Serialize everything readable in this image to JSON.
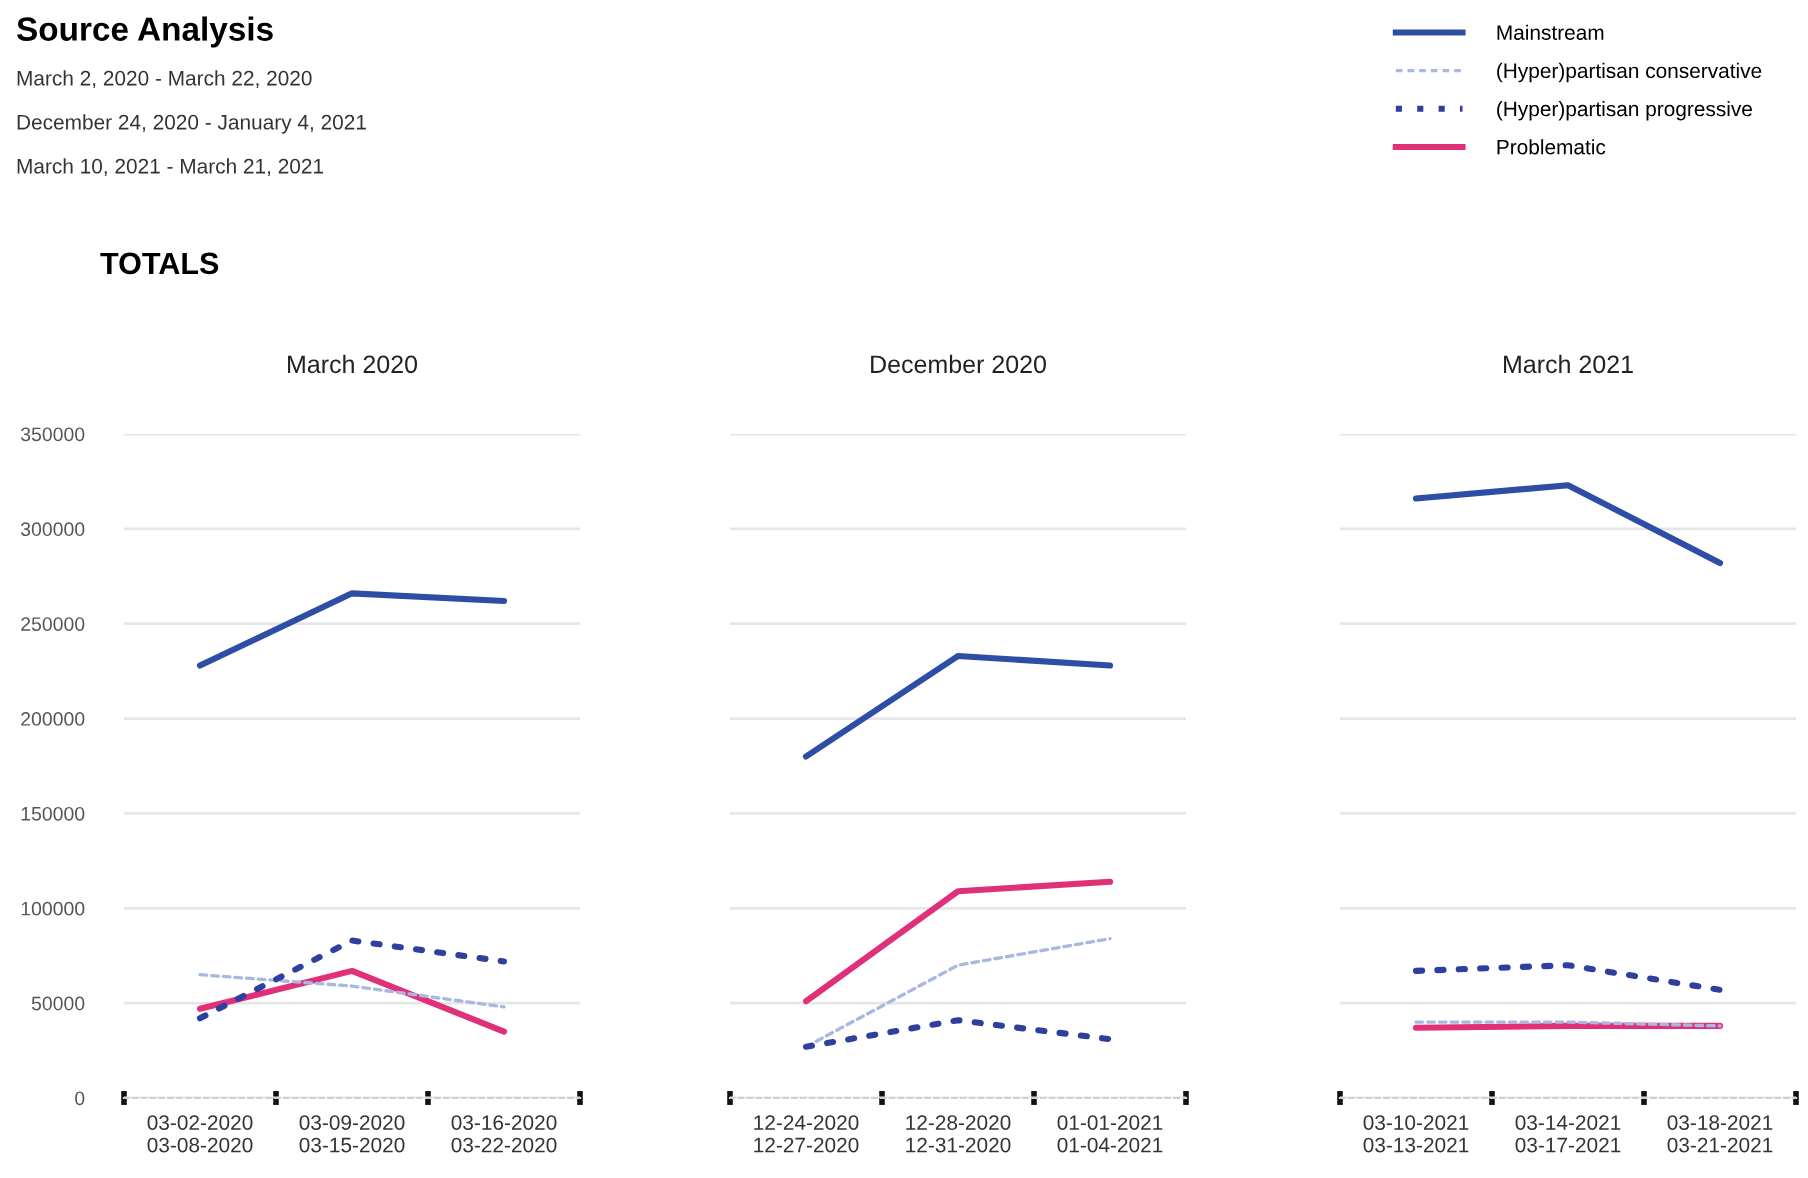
{
  "chart_data": [
    {
      "type": "line",
      "title": "March 2020",
      "legend": "top right",
      "annotations": [
        "Source Analysis",
        "March 2, 2020 - March 22, 2020",
        "December 24, 2020 - January 4, 2021",
        "March 10, 2021 - March 21, 2021",
        "TOTALS"
      ],
      "categories": [
        "03-02-2020\n03-08-2020",
        "03-09-2020\n03-15-2020",
        "03-16-2020\n03-22-2020"
      ],
      "ylim": [
        0,
        350000
      ],
      "yticks": [
        0,
        50000,
        100000,
        150000,
        200000,
        250000,
        300000,
        350000
      ],
      "grid": "y",
      "series": [
        {
          "name": "Mainstream",
          "color": "#2e4ea6",
          "line_style": "solid",
          "values": [
            228000,
            266000,
            262000
          ]
        },
        {
          "name": "(Hyper)partisan conservative",
          "color": "#a9b8e0",
          "line_style": "dashed",
          "values": [
            65000,
            59000,
            48000
          ]
        },
        {
          "name": "(Hyper)partisan progressive",
          "color": "#2e3f9e",
          "line_style": "dotted",
          "values": [
            42000,
            83000,
            72000
          ]
        },
        {
          "name": "Problematic",
          "color": "#e0307a",
          "line_style": "solid",
          "values": [
            47000,
            67000,
            35000
          ]
        }
      ]
    },
    {
      "type": "line",
      "title": "December 2020",
      "categories": [
        "12-24-2020\n12-27-2020",
        "12-28-2020\n12-31-2020",
        "01-01-2021\n01-04-2021"
      ],
      "ylim": [
        0,
        350000
      ],
      "tick_labels": "x",
      "grid": "y",
      "series": [
        {
          "color": "#2e4ea6",
          "line_style": "solid",
          "values": [
            180000,
            233000,
            228000
          ]
        },
        {
          "color": "#a9b8e0",
          "line_style": "dashed",
          "values": [
            27000,
            70000,
            84000
          ]
        },
        {
          "color": "#2e3f9e",
          "line_style": "dotted",
          "values": [
            27000,
            41000,
            31000
          ]
        },
        {
          "color": "#e0307a",
          "line_style": "solid",
          "values": [
            51000,
            109000,
            114000
          ]
        }
      ]
    },
    {
      "type": "line",
      "title": "March 2021",
      "categories": [
        "03-10-2021\n03-13-2021",
        "03-14-2021\n03-17-2021",
        "03-18-2021\n03-21-2021"
      ],
      "ylim": [
        0,
        350000
      ],
      "tick_labels": "x",
      "grid": "y",
      "series": [
        {
          "color": "#2e4ea6",
          "line_style": "solid",
          "values": [
            316000,
            323000,
            282000
          ]
        },
        {
          "color": "#a9b8e0",
          "line_style": "dashed",
          "values": [
            40000,
            40000,
            38000
          ]
        },
        {
          "color": "#2e3f9e",
          "line_style": "dotted",
          "values": [
            67000,
            70000,
            57000
          ]
        },
        {
          "color": "#e0307a",
          "line_style": "solid",
          "values": [
            37000,
            38000,
            38000
          ]
        }
      ]
    }
  ]
}
